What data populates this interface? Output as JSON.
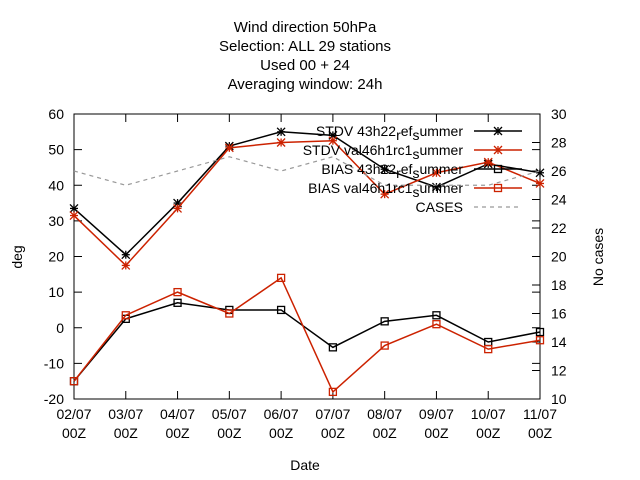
{
  "chart_data": {
    "type": "line",
    "title_lines": [
      "Wind direction 50hPa",
      "Selection: ALL      29 stations",
      "Used  00  + 24",
      "Averaging window: 24h"
    ],
    "xlabel": "Date",
    "ylabel": "deg",
    "y2label": "No cases",
    "categories": [
      [
        "02/07",
        "00Z"
      ],
      [
        "03/07",
        "00Z"
      ],
      [
        "04/07",
        "00Z"
      ],
      [
        "05/07",
        "00Z"
      ],
      [
        "06/07",
        "00Z"
      ],
      [
        "07/07",
        "00Z"
      ],
      [
        "08/07",
        "00Z"
      ],
      [
        "09/07",
        "00Z"
      ],
      [
        "10/07",
        "00Z"
      ],
      [
        "11/07",
        "00Z"
      ]
    ],
    "ylim": [
      -20,
      60
    ],
    "yticks": [
      -20,
      -10,
      0,
      10,
      20,
      30,
      40,
      50,
      60
    ],
    "y2lim": [
      10,
      30
    ],
    "y2ticks": [
      10,
      12,
      14,
      16,
      18,
      20,
      22,
      24,
      26,
      28,
      30
    ],
    "grid": false,
    "legend_position": "top-right",
    "series": [
      {
        "name": "STDV 43h22_ref_summer",
        "legend_parts": [
          [
            "STDV 43h22",
            0
          ],
          [
            "r",
            1
          ],
          [
            "ef",
            0
          ],
          [
            "s",
            1
          ],
          [
            "ummer",
            0
          ]
        ],
        "axis": "y",
        "color": "#000000",
        "marker": "star",
        "dash": "",
        "values": [
          33.5,
          20.5,
          35,
          51,
          55,
          54,
          44.5,
          39.5,
          46,
          43.5
        ]
      },
      {
        "name": "STDV val46h1rc1_summer",
        "legend_parts": [
          [
            "STDV val46h1rc1",
            0
          ],
          [
            "s",
            1
          ],
          [
            "ummer",
            0
          ]
        ],
        "axis": "y",
        "color": "#cc2200",
        "marker": "star",
        "dash": "",
        "values": [
          31.5,
          17.5,
          33.5,
          50.5,
          52,
          52.5,
          37.5,
          43.5,
          46.5,
          40.5
        ]
      },
      {
        "name": "BIAS 43h22_ref_summer",
        "legend_parts": [
          [
            "BIAS 43h22",
            0
          ],
          [
            "r",
            1
          ],
          [
            "ef",
            0
          ],
          [
            "s",
            1
          ],
          [
            "ummer",
            0
          ]
        ],
        "axis": "y",
        "color": "#000000",
        "marker": "square",
        "dash": "",
        "values": [
          -15,
          2.5,
          7,
          5,
          5,
          -5.5,
          1.8,
          3.5,
          -4,
          -1.2
        ]
      },
      {
        "name": "BIAS val46h1rc1_summer",
        "legend_parts": [
          [
            "BIAS val46h1rc1",
            0
          ],
          [
            "s",
            1
          ],
          [
            "ummer",
            0
          ]
        ],
        "axis": "y",
        "color": "#cc2200",
        "marker": "square",
        "dash": "",
        "values": [
          -15,
          3.5,
          10,
          4,
          14,
          -18,
          -5,
          1,
          -6,
          -3.5
        ]
      },
      {
        "name": "CASES",
        "legend_parts": [
          [
            "CASES",
            0
          ]
        ],
        "axis": "y2",
        "color": "#999999",
        "marker": "none",
        "dash": "4,4",
        "values": [
          26,
          25,
          26,
          27,
          26,
          27,
          25,
          25,
          25,
          26
        ]
      }
    ]
  }
}
